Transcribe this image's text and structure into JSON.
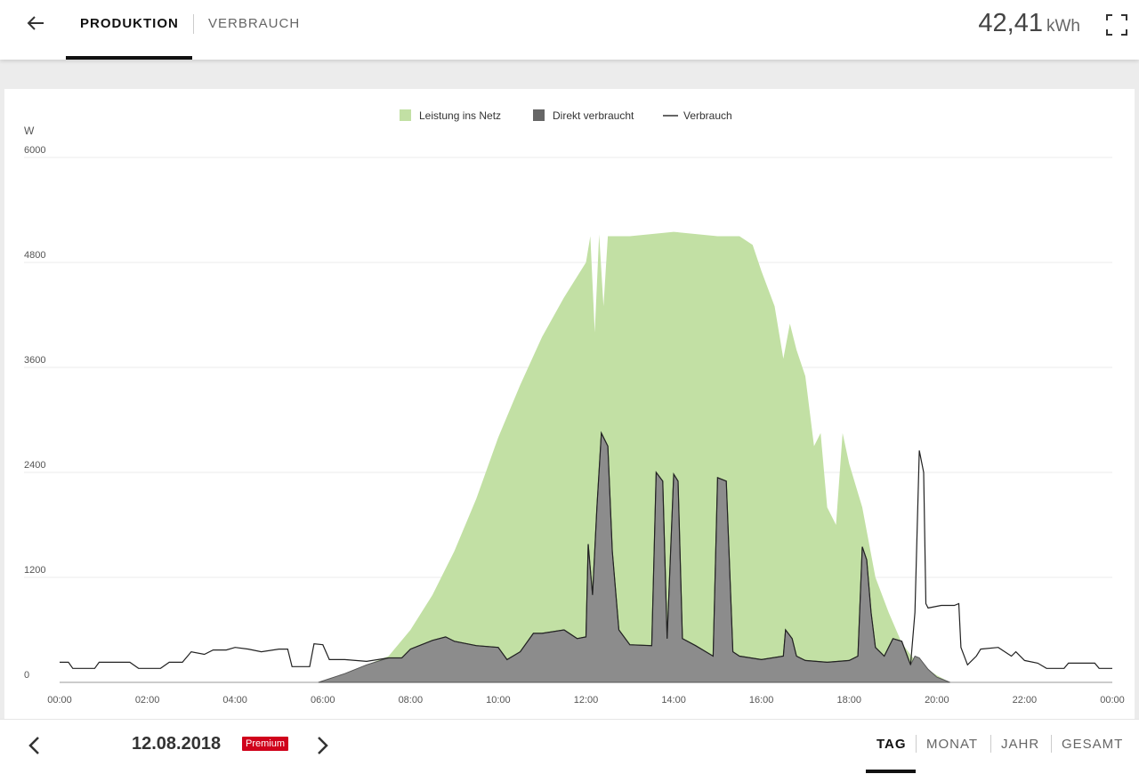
{
  "header": {
    "back_icon": "arrow-left-icon",
    "tabs": [
      {
        "label": "PRODUKTION",
        "active": true
      },
      {
        "label": "VERBRAUCH",
        "active": false
      }
    ],
    "total_value": "42,41",
    "total_unit": "kWh",
    "fullscreen_icon": "fullscreen-icon"
  },
  "footer": {
    "date": "12.08.2018",
    "badge": "Premium",
    "badge_color": "#d0021b",
    "periods": [
      "TAG",
      "MONAT",
      "JAHR",
      "GESAMT"
    ],
    "active_period": "TAG"
  },
  "chart_data": {
    "type": "area",
    "ylabel": "W",
    "ylim": [
      0,
      6000
    ],
    "yticks": [
      0,
      1200,
      2400,
      3600,
      4800,
      6000
    ],
    "xticks": [
      "00:00",
      "02:00",
      "04:00",
      "06:00",
      "08:00",
      "10:00",
      "12:00",
      "14:00",
      "16:00",
      "18:00",
      "20:00",
      "22:00",
      "00:00"
    ],
    "legend_position": "top-center",
    "grid": true,
    "colors": {
      "production": "#c2e0a4",
      "direct": "#8c8c8c",
      "consumption": "#222222"
    },
    "series": [
      {
        "name": "Leistung ins Netz",
        "kind": "area",
        "points": [
          [
            5.9,
            0
          ],
          [
            6.5,
            100
          ],
          [
            7.0,
            200
          ],
          [
            7.5,
            300
          ],
          [
            8.0,
            600
          ],
          [
            8.5,
            1000
          ],
          [
            9.0,
            1500
          ],
          [
            9.5,
            2100
          ],
          [
            10.0,
            2800
          ],
          [
            10.5,
            3400
          ],
          [
            11.0,
            3950
          ],
          [
            11.5,
            4400
          ],
          [
            12.0,
            4800
          ],
          [
            12.1,
            5100
          ],
          [
            12.2,
            4000
          ],
          [
            12.3,
            5120
          ],
          [
            12.4,
            4300
          ],
          [
            12.5,
            5100
          ],
          [
            13.0,
            5100
          ],
          [
            14.0,
            5150
          ],
          [
            15.0,
            5100
          ],
          [
            15.5,
            5100
          ],
          [
            15.8,
            5000
          ],
          [
            16.0,
            4700
          ],
          [
            16.3,
            4300
          ],
          [
            16.5,
            3700
          ],
          [
            16.65,
            4100
          ],
          [
            16.8,
            3800
          ],
          [
            17.0,
            3500
          ],
          [
            17.2,
            2700
          ],
          [
            17.35,
            2850
          ],
          [
            17.5,
            2000
          ],
          [
            17.7,
            1800
          ],
          [
            17.85,
            2850
          ],
          [
            18.0,
            2500
          ],
          [
            18.3,
            2000
          ],
          [
            18.6,
            1200
          ],
          [
            18.9,
            800
          ],
          [
            19.2,
            450
          ],
          [
            19.5,
            250
          ],
          [
            20.0,
            80
          ],
          [
            20.3,
            0
          ]
        ]
      },
      {
        "name": "Direkt verbraucht",
        "kind": "area",
        "points": [
          [
            5.9,
            0
          ],
          [
            6.5,
            100
          ],
          [
            7.0,
            200
          ],
          [
            7.5,
            280
          ],
          [
            7.8,
            280
          ],
          [
            8.0,
            380
          ],
          [
            8.5,
            480
          ],
          [
            8.8,
            520
          ],
          [
            9.0,
            470
          ],
          [
            9.5,
            420
          ],
          [
            10.0,
            400
          ],
          [
            10.2,
            260
          ],
          [
            10.5,
            350
          ],
          [
            10.8,
            560
          ],
          [
            11.0,
            560
          ],
          [
            11.5,
            600
          ],
          [
            11.8,
            500
          ],
          [
            12.0,
            520
          ],
          [
            12.05,
            1580
          ],
          [
            12.15,
            1000
          ],
          [
            12.25,
            2000
          ],
          [
            12.35,
            2850
          ],
          [
            12.5,
            2700
          ],
          [
            12.6,
            1500
          ],
          [
            12.75,
            600
          ],
          [
            13.0,
            430
          ],
          [
            13.5,
            420
          ],
          [
            13.6,
            2400
          ],
          [
            13.75,
            2300
          ],
          [
            13.85,
            500
          ],
          [
            14.0,
            2380
          ],
          [
            14.1,
            2300
          ],
          [
            14.2,
            500
          ],
          [
            14.5,
            420
          ],
          [
            14.9,
            300
          ],
          [
            15.0,
            2340
          ],
          [
            15.2,
            2300
          ],
          [
            15.35,
            350
          ],
          [
            15.5,
            300
          ],
          [
            16.0,
            260
          ],
          [
            16.5,
            300
          ],
          [
            16.55,
            600
          ],
          [
            16.7,
            500
          ],
          [
            16.8,
            300
          ],
          [
            17.0,
            250
          ],
          [
            17.5,
            230
          ],
          [
            18.0,
            250
          ],
          [
            18.2,
            300
          ],
          [
            18.3,
            1550
          ],
          [
            18.4,
            1400
          ],
          [
            18.5,
            800
          ],
          [
            18.6,
            400
          ],
          [
            18.8,
            300
          ],
          [
            19.0,
            500
          ],
          [
            19.2,
            470
          ],
          [
            19.4,
            200
          ],
          [
            19.5,
            300
          ],
          [
            19.6,
            280
          ],
          [
            19.8,
            150
          ],
          [
            20.0,
            60
          ],
          [
            20.3,
            0
          ]
        ]
      },
      {
        "name": "Verbrauch",
        "kind": "line",
        "points": [
          [
            0,
            230
          ],
          [
            0.2,
            230
          ],
          [
            0.3,
            160
          ],
          [
            0.8,
            160
          ],
          [
            0.9,
            230
          ],
          [
            1.6,
            230
          ],
          [
            1.8,
            160
          ],
          [
            2.3,
            160
          ],
          [
            2.5,
            230
          ],
          [
            2.8,
            230
          ],
          [
            3.0,
            350
          ],
          [
            3.3,
            320
          ],
          [
            3.5,
            370
          ],
          [
            3.8,
            370
          ],
          [
            4.0,
            400
          ],
          [
            4.3,
            380
          ],
          [
            4.6,
            350
          ],
          [
            5.0,
            380
          ],
          [
            5.2,
            380
          ],
          [
            5.3,
            180
          ],
          [
            5.7,
            180
          ],
          [
            5.8,
            440
          ],
          [
            6.0,
            430
          ],
          [
            6.15,
            260
          ],
          [
            6.5,
            260
          ],
          [
            7.0,
            240
          ],
          [
            7.5,
            280
          ],
          [
            7.8,
            280
          ],
          [
            8.0,
            380
          ],
          [
            8.5,
            480
          ],
          [
            8.8,
            520
          ],
          [
            9.0,
            470
          ],
          [
            9.5,
            420
          ],
          [
            10.0,
            400
          ],
          [
            10.2,
            260
          ],
          [
            10.5,
            350
          ],
          [
            10.8,
            560
          ],
          [
            11.0,
            560
          ],
          [
            11.5,
            600
          ],
          [
            11.8,
            500
          ],
          [
            12.0,
            520
          ],
          [
            12.05,
            1580
          ],
          [
            12.15,
            1000
          ],
          [
            12.25,
            2000
          ],
          [
            12.35,
            2850
          ],
          [
            12.5,
            2700
          ],
          [
            12.6,
            1500
          ],
          [
            12.75,
            600
          ],
          [
            13.0,
            430
          ],
          [
            13.5,
            420
          ],
          [
            13.6,
            2400
          ],
          [
            13.75,
            2300
          ],
          [
            13.85,
            500
          ],
          [
            14.0,
            2380
          ],
          [
            14.1,
            2300
          ],
          [
            14.2,
            500
          ],
          [
            14.5,
            420
          ],
          [
            14.9,
            300
          ],
          [
            15.0,
            2340
          ],
          [
            15.2,
            2300
          ],
          [
            15.35,
            350
          ],
          [
            15.5,
            300
          ],
          [
            16.0,
            260
          ],
          [
            16.5,
            300
          ],
          [
            16.55,
            600
          ],
          [
            16.7,
            500
          ],
          [
            16.8,
            300
          ],
          [
            17.0,
            250
          ],
          [
            17.5,
            230
          ],
          [
            18.0,
            250
          ],
          [
            18.2,
            300
          ],
          [
            18.3,
            1550
          ],
          [
            18.4,
            1400
          ],
          [
            18.5,
            800
          ],
          [
            18.6,
            400
          ],
          [
            18.8,
            300
          ],
          [
            19.0,
            500
          ],
          [
            19.2,
            470
          ],
          [
            19.4,
            200
          ],
          [
            19.5,
            800
          ],
          [
            19.6,
            2650
          ],
          [
            19.7,
            2400
          ],
          [
            19.75,
            900
          ],
          [
            19.8,
            850
          ],
          [
            20.1,
            880
          ],
          [
            20.4,
            880
          ],
          [
            20.5,
            900
          ],
          [
            20.55,
            400
          ],
          [
            20.7,
            200
          ],
          [
            20.9,
            300
          ],
          [
            21.0,
            380
          ],
          [
            21.4,
            400
          ],
          [
            21.7,
            300
          ],
          [
            21.8,
            350
          ],
          [
            22.0,
            250
          ],
          [
            22.3,
            220
          ],
          [
            22.5,
            160
          ],
          [
            22.9,
            160
          ],
          [
            23.0,
            220
          ],
          [
            23.6,
            220
          ],
          [
            23.7,
            160
          ],
          [
            24.0,
            160
          ]
        ]
      }
    ]
  }
}
